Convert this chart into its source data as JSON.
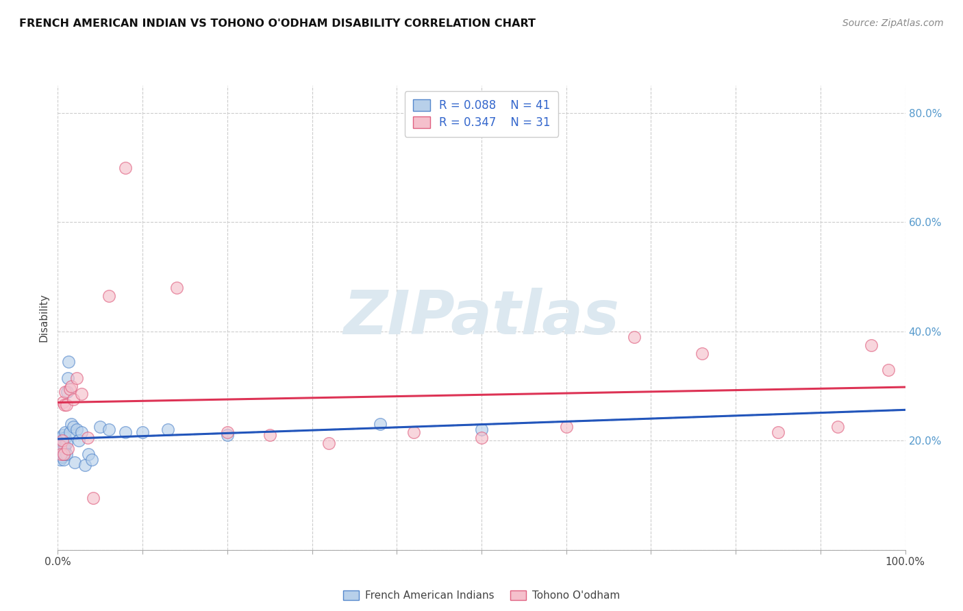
{
  "title": "FRENCH AMERICAN INDIAN VS TOHONO O'ODHAM DISABILITY CORRELATION CHART",
  "source": "Source: ZipAtlas.com",
  "ylabel": "Disability",
  "xlim": [
    0,
    1.0
  ],
  "ylim": [
    0,
    0.85
  ],
  "xtick_positions": [
    0.0,
    0.1,
    0.2,
    0.3,
    0.4,
    0.5,
    0.6,
    0.7,
    0.8,
    0.9,
    1.0
  ],
  "xedge_labels": {
    "0.0": "0.0%",
    "1.0": "100.0%"
  },
  "ytick_positions": [
    0.0,
    0.2,
    0.4,
    0.6,
    0.8
  ],
  "right_yticklabels": [
    "20.0%",
    "40.0%",
    "60.0%",
    "80.0%"
  ],
  "right_ytick_positions": [
    0.2,
    0.4,
    0.6,
    0.8
  ],
  "R_blue": 0.088,
  "N_blue": 41,
  "R_pink": 0.347,
  "N_pink": 31,
  "blue_fill": "#b8d0ea",
  "blue_edge": "#5588cc",
  "pink_fill": "#f5c0cc",
  "pink_edge": "#e06080",
  "trend_blue_color": "#2255bb",
  "trend_pink_color": "#dd3355",
  "trend_dashed_color": "#99bbdd",
  "legend_text_color": "#3366cc",
  "background_color": "#ffffff",
  "grid_color": "#cccccc",
  "watermark_color": "#dce8f0",
  "legend_label_blue": "French American Indians",
  "legend_label_pink": "Tohono O'odham",
  "blue_x": [
    0.002,
    0.003,
    0.003,
    0.004,
    0.004,
    0.005,
    0.005,
    0.005,
    0.006,
    0.006,
    0.006,
    0.007,
    0.007,
    0.008,
    0.008,
    0.008,
    0.009,
    0.009,
    0.01,
    0.01,
    0.011,
    0.012,
    0.013,
    0.014,
    0.016,
    0.018,
    0.02,
    0.022,
    0.025,
    0.028,
    0.032,
    0.036,
    0.04,
    0.05,
    0.06,
    0.08,
    0.1,
    0.13,
    0.2,
    0.38,
    0.5
  ],
  "blue_y": [
    0.195,
    0.18,
    0.165,
    0.19,
    0.205,
    0.185,
    0.17,
    0.2,
    0.185,
    0.175,
    0.21,
    0.195,
    0.165,
    0.19,
    0.185,
    0.175,
    0.205,
    0.215,
    0.195,
    0.175,
    0.29,
    0.315,
    0.345,
    0.215,
    0.23,
    0.225,
    0.16,
    0.22,
    0.2,
    0.215,
    0.155,
    0.175,
    0.165,
    0.225,
    0.22,
    0.215,
    0.215,
    0.22,
    0.21,
    0.23,
    0.22
  ],
  "pink_x": [
    0.003,
    0.004,
    0.005,
    0.006,
    0.007,
    0.008,
    0.009,
    0.01,
    0.012,
    0.014,
    0.016,
    0.018,
    0.022,
    0.028,
    0.035,
    0.042,
    0.06,
    0.08,
    0.14,
    0.2,
    0.25,
    0.32,
    0.42,
    0.5,
    0.6,
    0.68,
    0.76,
    0.85,
    0.92,
    0.96,
    0.98
  ],
  "pink_y": [
    0.19,
    0.175,
    0.2,
    0.27,
    0.175,
    0.265,
    0.29,
    0.265,
    0.185,
    0.295,
    0.3,
    0.275,
    0.315,
    0.285,
    0.205,
    0.095,
    0.465,
    0.7,
    0.48,
    0.215,
    0.21,
    0.195,
    0.215,
    0.205,
    0.225,
    0.39,
    0.36,
    0.215,
    0.225,
    0.375,
    0.33
  ],
  "scatter_size": 160,
  "scatter_alpha": 0.65
}
